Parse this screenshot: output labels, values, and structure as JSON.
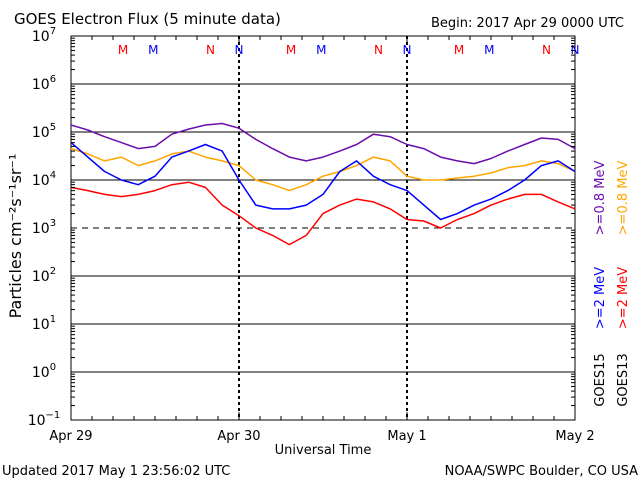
{
  "colors": {
    "goes15": "#0000ff",
    "goes13": "#ff0000",
    "goes15_low": "#6a0dad",
    "goes13_low": "#ffa500",
    "axis": "#000000",
    "mark_m": "#ff0000",
    "mark_n": "#0000ff"
  },
  "chart_data": {
    "type": "line",
    "title": "GOES Electron Flux (5 minute data)",
    "begin_label": "Begin: 2017 Apr 29 0000 UTC",
    "xlabel": "Universal Time",
    "ylabel": "Particles cm⁻²s⁻¹sr⁻¹",
    "yscale": "log",
    "ylim_exp": [
      -1,
      7
    ],
    "xlim_days": [
      0,
      3
    ],
    "ytick_exps": [
      7,
      6,
      5,
      4,
      3,
      2,
      1,
      0,
      -1
    ],
    "threshold_exp": 3,
    "x_ticks": [
      {
        "day": 0,
        "label": "Apr 29"
      },
      {
        "day": 1,
        "label": "Apr 30"
      },
      {
        "day": 2,
        "label": "May 1"
      },
      {
        "day": 3,
        "label": "May 2"
      }
    ],
    "markers": [
      {
        "day": 0.31,
        "text": "M",
        "sat": "goes13"
      },
      {
        "day": 0.49,
        "text": "M",
        "sat": "goes15"
      },
      {
        "day": 0.83,
        "text": "N",
        "sat": "goes13"
      },
      {
        "day": 1.0,
        "text": "N",
        "sat": "goes15"
      },
      {
        "day": 1.31,
        "text": "M",
        "sat": "goes13"
      },
      {
        "day": 1.49,
        "text": "M",
        "sat": "goes15"
      },
      {
        "day": 1.83,
        "text": "N",
        "sat": "goes13"
      },
      {
        "day": 2.0,
        "text": "N",
        "sat": "goes15"
      },
      {
        "day": 2.31,
        "text": "M",
        "sat": "goes13"
      },
      {
        "day": 2.49,
        "text": "M",
        "sat": "goes15"
      },
      {
        "day": 2.83,
        "text": "N",
        "sat": "goes13"
      },
      {
        "day": 3.0,
        "text": "N",
        "sat": "goes15"
      }
    ],
    "legend": {
      "placement": "right",
      "goes15_label": "GOES15",
      "goes13_label": "GOES13",
      "low_energy_label": ">=0.8 MeV",
      "high_energy_label": ">=2 MeV"
    },
    "series": [
      {
        "name": "GOES15 >=0.8 MeV",
        "color_key": "goes15_low",
        "x": [
          0,
          0.1,
          0.2,
          0.3,
          0.4,
          0.5,
          0.6,
          0.7,
          0.8,
          0.9,
          1.0,
          1.1,
          1.2,
          1.3,
          1.4,
          1.5,
          1.6,
          1.7,
          1.8,
          1.9,
          2.0,
          2.1,
          2.2,
          2.3,
          2.4,
          2.5,
          2.6,
          2.7,
          2.8,
          2.9,
          3.0
        ],
        "y": [
          140000,
          110000,
          80000,
          60000,
          45000,
          50000,
          90000,
          115000,
          140000,
          150000,
          120000,
          70000,
          45000,
          30000,
          25000,
          30000,
          40000,
          55000,
          90000,
          80000,
          55000,
          45000,
          30000,
          25000,
          22000,
          28000,
          40000,
          55000,
          75000,
          70000,
          45000
        ]
      },
      {
        "name": "GOES13 >=0.8 MeV",
        "color_key": "goes13_low",
        "x": [
          0,
          0.1,
          0.2,
          0.3,
          0.4,
          0.5,
          0.6,
          0.7,
          0.8,
          0.9,
          1.0,
          1.1,
          1.2,
          1.3,
          1.4,
          1.5,
          1.6,
          1.7,
          1.8,
          1.9,
          2.0,
          2.1,
          2.2,
          2.3,
          2.4,
          2.5,
          2.6,
          2.7,
          2.8,
          2.9,
          3.0
        ],
        "y": [
          45000,
          35000,
          25000,
          30000,
          20000,
          25000,
          35000,
          40000,
          30000,
          25000,
          20000,
          10000,
          8000,
          6000,
          8000,
          12000,
          15000,
          20000,
          30000,
          25000,
          12000,
          10000,
          10000,
          11000,
          12000,
          14000,
          18000,
          20000,
          25000,
          22000,
          15000
        ]
      },
      {
        "name": "GOES15 >=2 MeV",
        "color_key": "goes15",
        "x": [
          0,
          0.1,
          0.2,
          0.3,
          0.4,
          0.5,
          0.6,
          0.7,
          0.8,
          0.9,
          1.0,
          1.1,
          1.2,
          1.3,
          1.4,
          1.5,
          1.6,
          1.7,
          1.8,
          1.9,
          2.0,
          2.1,
          2.2,
          2.3,
          2.4,
          2.5,
          2.6,
          2.7,
          2.8,
          2.9,
          3.0
        ],
        "y": [
          60000,
          30000,
          15000,
          10000,
          8000,
          12000,
          30000,
          40000,
          55000,
          40000,
          10000,
          3000,
          2500,
          2500,
          3000,
          5000,
          15000,
          25000,
          12000,
          8000,
          6000,
          3000,
          1500,
          2000,
          3000,
          4000,
          6000,
          10000,
          20000,
          25000,
          15000
        ]
      },
      {
        "name": "GOES13 >=2 MeV",
        "color_key": "goes13",
        "x": [
          0,
          0.1,
          0.2,
          0.3,
          0.4,
          0.5,
          0.6,
          0.7,
          0.8,
          0.9,
          1.0,
          1.1,
          1.2,
          1.3,
          1.4,
          1.5,
          1.6,
          1.7,
          1.8,
          1.9,
          2.0,
          2.1,
          2.2,
          2.3,
          2.4,
          2.5,
          2.6,
          2.7,
          2.8,
          2.9,
          3.0
        ],
        "y": [
          7000,
          6000,
          5000,
          4500,
          5000,
          6000,
          8000,
          9000,
          7000,
          3000,
          1800,
          1000,
          700,
          450,
          700,
          2000,
          3000,
          4000,
          3500,
          2500,
          1500,
          1400,
          1000,
          1500,
          2000,
          3000,
          4000,
          5000,
          5000,
          3500,
          2500
        ]
      }
    ]
  },
  "footer": {
    "updated": "Updated 2017 May  1 23:56:02 UTC",
    "source": "NOAA/SWPC Boulder, CO USA"
  }
}
